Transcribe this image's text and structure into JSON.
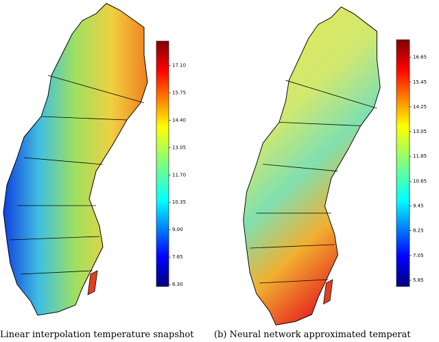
{
  "panels": [
    {
      "caption": "Linear interpolation temperature snapshot",
      "colorbar": {
        "lim": [
          6.2,
          18.3
        ],
        "ticks": [
          {
            "value": 6.3,
            "label": "6.30"
          },
          {
            "value": 7.65,
            "label": "7.65"
          },
          {
            "value": 9.0,
            "label": "9.00"
          },
          {
            "value": 10.35,
            "label": "10.35"
          },
          {
            "value": 11.7,
            "label": "11.70"
          },
          {
            "value": 13.05,
            "label": "13.05"
          },
          {
            "value": 14.4,
            "label": "14.40"
          },
          {
            "value": 15.75,
            "label": "15.75"
          },
          {
            "value": 17.1,
            "label": "17.10"
          }
        ]
      }
    },
    {
      "caption": "(b) Neural network approximated temperat",
      "colorbar": {
        "lim": [
          5.55,
          17.5
        ],
        "ticks": [
          {
            "value": 5.85,
            "label": "5.85"
          },
          {
            "value": 7.05,
            "label": "7.05"
          },
          {
            "value": 8.25,
            "label": "8.25"
          },
          {
            "value": 9.45,
            "label": "9.45"
          },
          {
            "value": 10.65,
            "label": "10.65"
          },
          {
            "value": 11.85,
            "label": "11.85"
          },
          {
            "value": 13.05,
            "label": "13.05"
          },
          {
            "value": 14.25,
            "label": "14.25"
          },
          {
            "value": 15.45,
            "label": "15.45"
          },
          {
            "value": 16.65,
            "label": "16.65"
          }
        ]
      }
    }
  ]
}
